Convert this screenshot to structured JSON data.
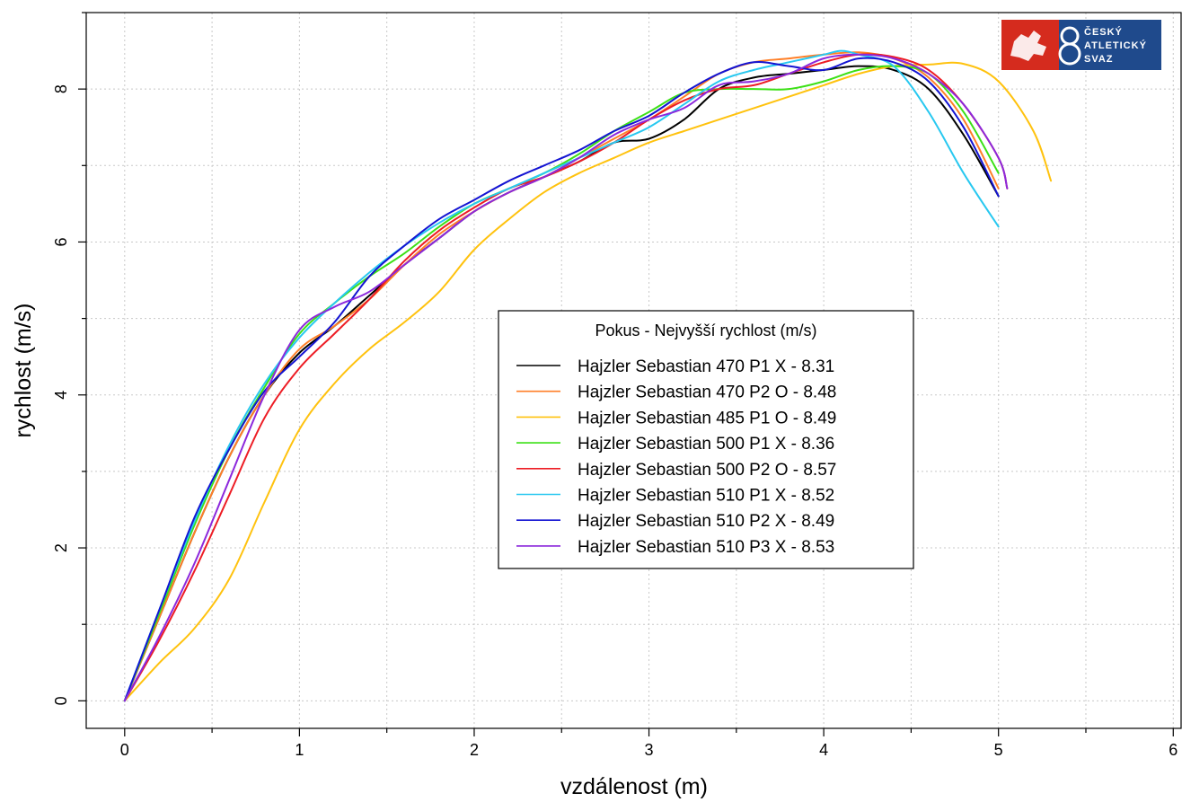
{
  "chart_data": {
    "type": "line",
    "xlabel": "vzdálenost (m)",
    "ylabel": "rychlost (m/s)",
    "xlim": [
      -0.22,
      6.05
    ],
    "ylim": [
      -0.36,
      9.0
    ],
    "xticks": [
      0,
      1,
      2,
      3,
      4,
      5,
      6
    ],
    "yticks": [
      0,
      2,
      4,
      6,
      8
    ],
    "grid": true,
    "legend": {
      "title": "Pokus - Nejvyšší rychlost (m/s)",
      "placement": "center"
    },
    "series": [
      {
        "name": "Hajzler Sebastian 470 P1 X - 8.31",
        "color": "#000000",
        "x": [
          0,
          0.2,
          0.4,
          0.6,
          0.8,
          1.0,
          1.2,
          1.4,
          1.6,
          1.8,
          2.0,
          2.2,
          2.4,
          2.6,
          2.8,
          3.0,
          3.2,
          3.4,
          3.6,
          3.8,
          4.0,
          4.2,
          4.4,
          4.6,
          4.8,
          5.0
        ],
        "y": [
          0,
          1.1,
          2.2,
          3.2,
          4.0,
          4.55,
          4.9,
          5.3,
          5.7,
          6.05,
          6.4,
          6.65,
          6.85,
          7.05,
          7.3,
          7.35,
          7.6,
          8.0,
          8.15,
          8.2,
          8.25,
          8.3,
          8.25,
          8.0,
          7.4,
          6.6
        ]
      },
      {
        "name": "Hajzler Sebastian 470 P2 O - 8.48",
        "color": "#ff7f27",
        "x": [
          0,
          0.2,
          0.4,
          0.6,
          0.8,
          1.0,
          1.2,
          1.4,
          1.6,
          1.8,
          2.0,
          2.2,
          2.4,
          2.6,
          2.8,
          3.0,
          3.2,
          3.4,
          3.6,
          3.8,
          4.0,
          4.2,
          4.4,
          4.6,
          4.8,
          5.0
        ],
        "y": [
          0,
          1.1,
          2.2,
          3.2,
          4.0,
          4.6,
          4.9,
          5.25,
          5.7,
          6.1,
          6.4,
          6.65,
          6.85,
          7.1,
          7.35,
          7.6,
          7.9,
          8.2,
          8.35,
          8.4,
          8.45,
          8.48,
          8.4,
          8.15,
          7.6,
          6.7
        ]
      },
      {
        "name": "Hajzler Sebastian 485 P1 O - 8.49",
        "color": "#ffc20e",
        "x": [
          0,
          0.2,
          0.4,
          0.6,
          0.8,
          1.0,
          1.2,
          1.4,
          1.6,
          1.8,
          2.0,
          2.2,
          2.4,
          2.6,
          2.8,
          3.0,
          3.2,
          3.4,
          3.6,
          3.8,
          4.0,
          4.2,
          4.4,
          4.6,
          4.8,
          5.0,
          5.2,
          5.3
        ],
        "y": [
          0,
          0.5,
          0.95,
          1.6,
          2.6,
          3.55,
          4.15,
          4.6,
          4.95,
          5.35,
          5.9,
          6.3,
          6.65,
          6.9,
          7.1,
          7.3,
          7.45,
          7.6,
          7.75,
          7.9,
          8.05,
          8.2,
          8.3,
          8.32,
          8.33,
          8.1,
          7.45,
          6.8
        ]
      },
      {
        "name": "Hajzler Sebastian 500 P1 X - 8.36",
        "color": "#3ce016",
        "x": [
          0,
          0.2,
          0.4,
          0.6,
          0.8,
          1.0,
          1.2,
          1.4,
          1.6,
          1.8,
          2.0,
          2.2,
          2.4,
          2.6,
          2.8,
          3.0,
          3.2,
          3.4,
          3.6,
          3.8,
          4.0,
          4.2,
          4.4,
          4.6,
          4.8,
          5.0
        ],
        "y": [
          0,
          1.15,
          2.3,
          3.3,
          4.1,
          4.8,
          5.2,
          5.55,
          5.85,
          6.2,
          6.5,
          6.7,
          6.9,
          7.15,
          7.45,
          7.7,
          7.95,
          8.0,
          8.0,
          8.0,
          8.1,
          8.25,
          8.3,
          8.2,
          7.7,
          6.9
        ]
      },
      {
        "name": "Hajzler Sebastian 500 P2 O - 8.57",
        "color": "#ed1c24",
        "x": [
          0,
          0.2,
          0.4,
          0.6,
          0.8,
          1.0,
          1.2,
          1.4,
          1.6,
          1.8,
          2.0,
          2.2,
          2.4,
          2.6,
          2.8,
          3.0,
          3.2,
          3.4,
          3.6,
          3.8,
          4.0,
          4.2,
          4.4,
          4.6,
          4.8,
          5.0,
          5.05
        ],
        "y": [
          0,
          0.8,
          1.7,
          2.7,
          3.7,
          4.35,
          4.8,
          5.25,
          5.75,
          6.15,
          6.45,
          6.7,
          6.85,
          7.05,
          7.3,
          7.6,
          7.85,
          8.0,
          8.05,
          8.2,
          8.35,
          8.45,
          8.42,
          8.25,
          7.8,
          7.1,
          6.7
        ]
      },
      {
        "name": "Hajzler Sebastian 510 P1 X - 8.52",
        "color": "#28c8f0",
        "x": [
          0,
          0.2,
          0.4,
          0.6,
          0.8,
          1.0,
          1.2,
          1.4,
          1.6,
          1.8,
          2.0,
          2.2,
          2.4,
          2.6,
          2.8,
          3.0,
          3.2,
          3.4,
          3.6,
          3.8,
          4.0,
          4.1,
          4.2,
          4.4,
          4.6,
          4.8,
          5.0
        ],
        "y": [
          0,
          1.2,
          2.35,
          3.35,
          4.15,
          4.75,
          5.2,
          5.6,
          5.95,
          6.25,
          6.5,
          6.7,
          6.9,
          7.1,
          7.3,
          7.5,
          7.8,
          8.1,
          8.25,
          8.35,
          8.45,
          8.5,
          8.45,
          8.3,
          7.7,
          6.9,
          6.2
        ]
      },
      {
        "name": "Hajzler Sebastian 510 P2 X - 8.49",
        "color": "#1414d2",
        "x": [
          0,
          0.2,
          0.4,
          0.6,
          0.8,
          1.0,
          1.2,
          1.4,
          1.6,
          1.8,
          2.0,
          2.2,
          2.4,
          2.6,
          2.8,
          3.0,
          3.2,
          3.4,
          3.6,
          3.8,
          4.0,
          4.2,
          4.4,
          4.6,
          4.8,
          5.0
        ],
        "y": [
          0,
          1.2,
          2.4,
          3.3,
          4.05,
          4.5,
          4.95,
          5.55,
          5.95,
          6.3,
          6.55,
          6.8,
          7.0,
          7.2,
          7.45,
          7.65,
          7.95,
          8.2,
          8.35,
          8.3,
          8.25,
          8.4,
          8.35,
          8.1,
          7.5,
          6.6
        ]
      },
      {
        "name": "Hajzler Sebastian 510 P3 X - 8.53",
        "color": "#8c28dc",
        "x": [
          0,
          0.2,
          0.4,
          0.6,
          0.8,
          1.0,
          1.2,
          1.4,
          1.6,
          1.8,
          2.0,
          2.2,
          2.4,
          2.6,
          2.8,
          3.0,
          3.2,
          3.4,
          3.6,
          3.8,
          4.0,
          4.2,
          4.4,
          4.6,
          4.8,
          5.0,
          5.05
        ],
        "y": [
          0,
          0.85,
          1.8,
          2.9,
          4.0,
          4.85,
          5.15,
          5.35,
          5.7,
          6.05,
          6.4,
          6.65,
          6.85,
          7.1,
          7.4,
          7.6,
          7.75,
          8.05,
          8.1,
          8.2,
          8.4,
          8.45,
          8.4,
          8.2,
          7.8,
          7.1,
          6.7
        ]
      }
    ]
  },
  "logo": {
    "lines": [
      "ČESKÝ",
      "ATLETICKÝ",
      "SVAZ"
    ]
  }
}
